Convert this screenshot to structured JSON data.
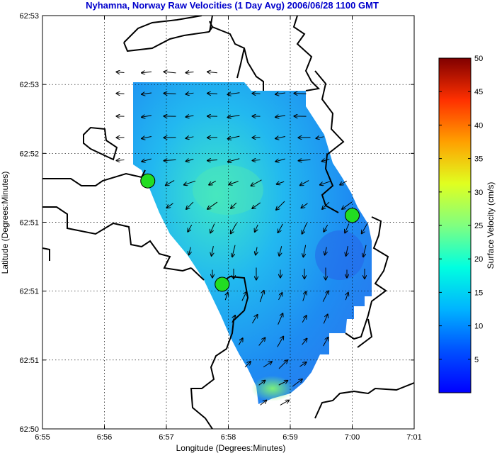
{
  "chart_data": {
    "type": "vector-field",
    "title": "Nyhamna, Norway Raw Velocities (1 Day Avg) 2006/06/28 1100 GMT",
    "xlabel": "Longitude (Degrees:Minutes)",
    "ylabel": "Latitude (Degrees:Minutes)",
    "x_ticks": [
      "6:55",
      "6:56",
      "6:57",
      "6:58",
      "6:59",
      "7:00",
      "7:01"
    ],
    "y_ticks": [
      "62:50",
      "62:51",
      "62:51",
      "62:51",
      "62:52",
      "62:53",
      "62:53"
    ],
    "grid": true,
    "colorbar": {
      "label": "Surface Velocity (cm/s)",
      "ticks": [
        "5",
        "10",
        "15",
        "20",
        "25",
        "30",
        "35",
        "40",
        "45",
        "50"
      ],
      "range": [
        0,
        50
      ],
      "colormap": "jet"
    },
    "stations": [
      {
        "lon_min": 6.7,
        "lat_idx": 3.6
      },
      {
        "lon_min": 7.9,
        "lat_idx": 2.1
      },
      {
        "lon_min": 10.0,
        "lat_idx": 3.1
      }
    ],
    "colors": {
      "station": "#22dd22",
      "coast": "#000000",
      "arrows": "#000000"
    }
  }
}
